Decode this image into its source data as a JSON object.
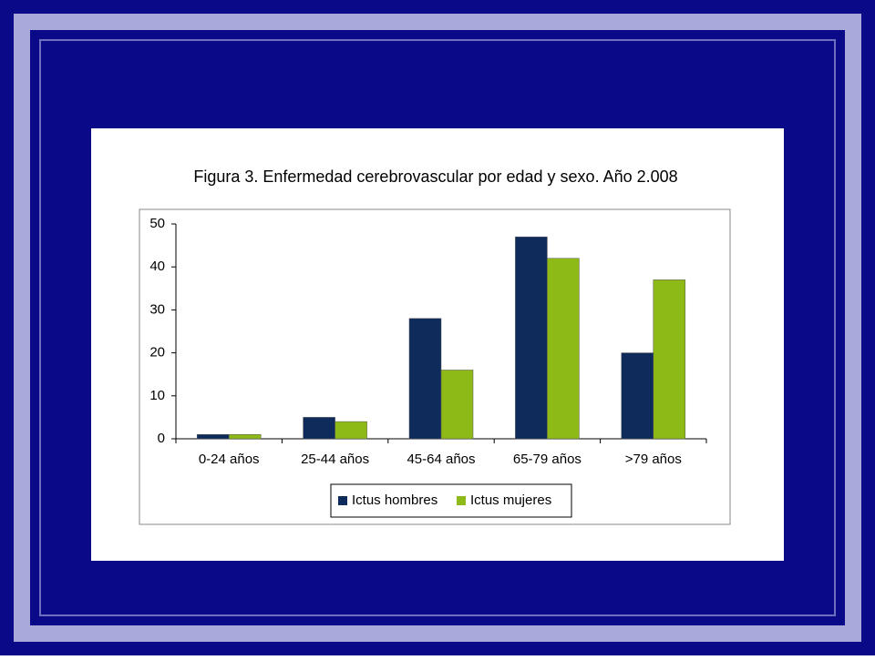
{
  "chart_data": {
    "type": "bar",
    "title": "Figura 3.  Enfermedad cerebrovascular por edad y sexo. Año 2.008",
    "categories": [
      "0-24 años",
      "25-44 años",
      "45-64 años",
      "65-79 años",
      ">79 años"
    ],
    "series": [
      {
        "name": "Ictus hombres",
        "color": "#0e2b5c",
        "values": [
          1,
          5,
          28,
          47,
          20
        ]
      },
      {
        "name": "Ictus mujeres",
        "color": "#8dba16",
        "values": [
          1,
          4,
          16,
          42,
          37
        ]
      }
    ],
    "ylim": [
      0,
      50
    ],
    "yticks": [
      0,
      10,
      20,
      30,
      40,
      50
    ],
    "grid": false,
    "legend": "bottom"
  }
}
